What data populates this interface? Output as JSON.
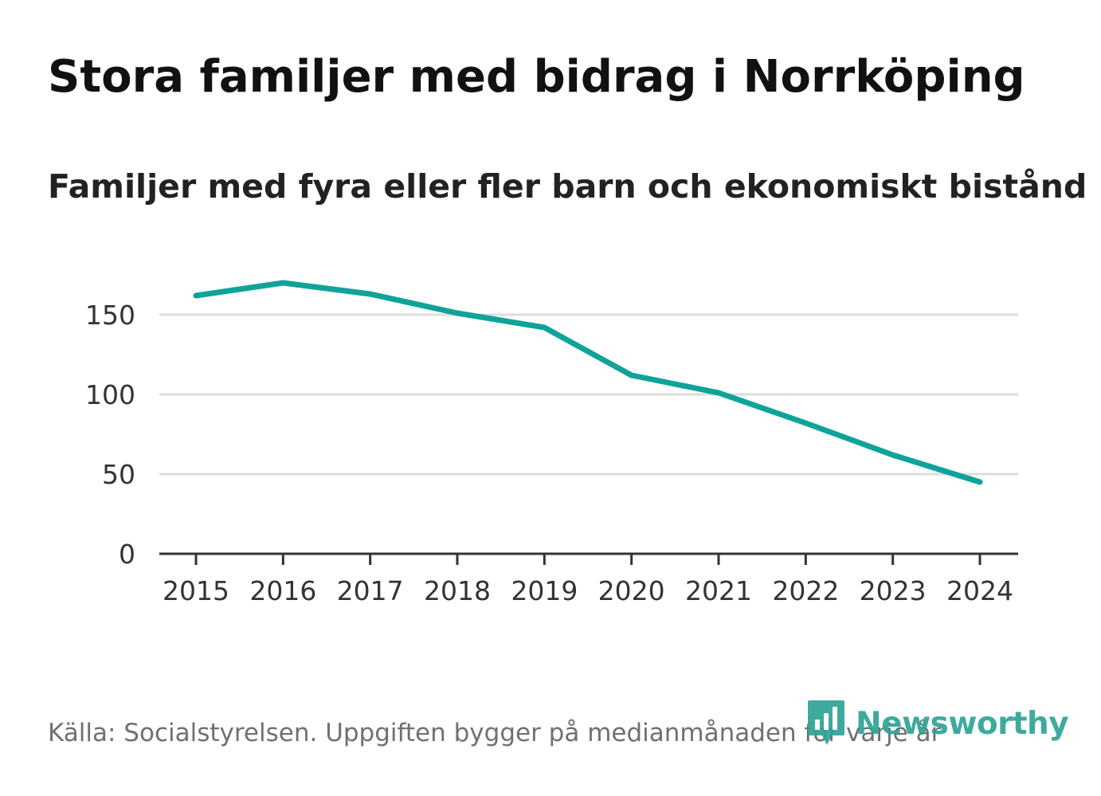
{
  "header": {
    "title": "Stora familjer med bidrag i Norrköping",
    "subtitle": "Familjer med fyra eller fler barn och ekonomiskt bistånd"
  },
  "footer": {
    "source": "Källa: Socialstyrelsen. Uppgiften bygger på medianmånaden för varje år",
    "brand": "Newsworthy"
  },
  "colors": {
    "line": "#0fa39a",
    "grid": "#dddddd",
    "axis": "#333333",
    "brand": "#2ea396"
  },
  "chart_data": {
    "type": "line",
    "title": "Stora familjer med bidrag i Norrköping",
    "subtitle": "Familjer med fyra eller fler barn och ekonomiskt bistånd",
    "xlabel": "",
    "ylabel": "",
    "categories": [
      "2015",
      "2016",
      "2017",
      "2018",
      "2019",
      "2020",
      "2021",
      "2022",
      "2023",
      "2024"
    ],
    "series": [
      {
        "name": "Familjer med fyra eller fler barn och ekonomiskt bistånd",
        "values": [
          162,
          170,
          163,
          151,
          142,
          112,
          101,
          82,
          62,
          45
        ]
      }
    ],
    "yticks": [
      0,
      50,
      100,
      150
    ],
    "ytick_labels": [
      "0",
      "50",
      "100",
      "150"
    ],
    "ylim": [
      0,
      175
    ],
    "grid": true,
    "legend": "none"
  }
}
